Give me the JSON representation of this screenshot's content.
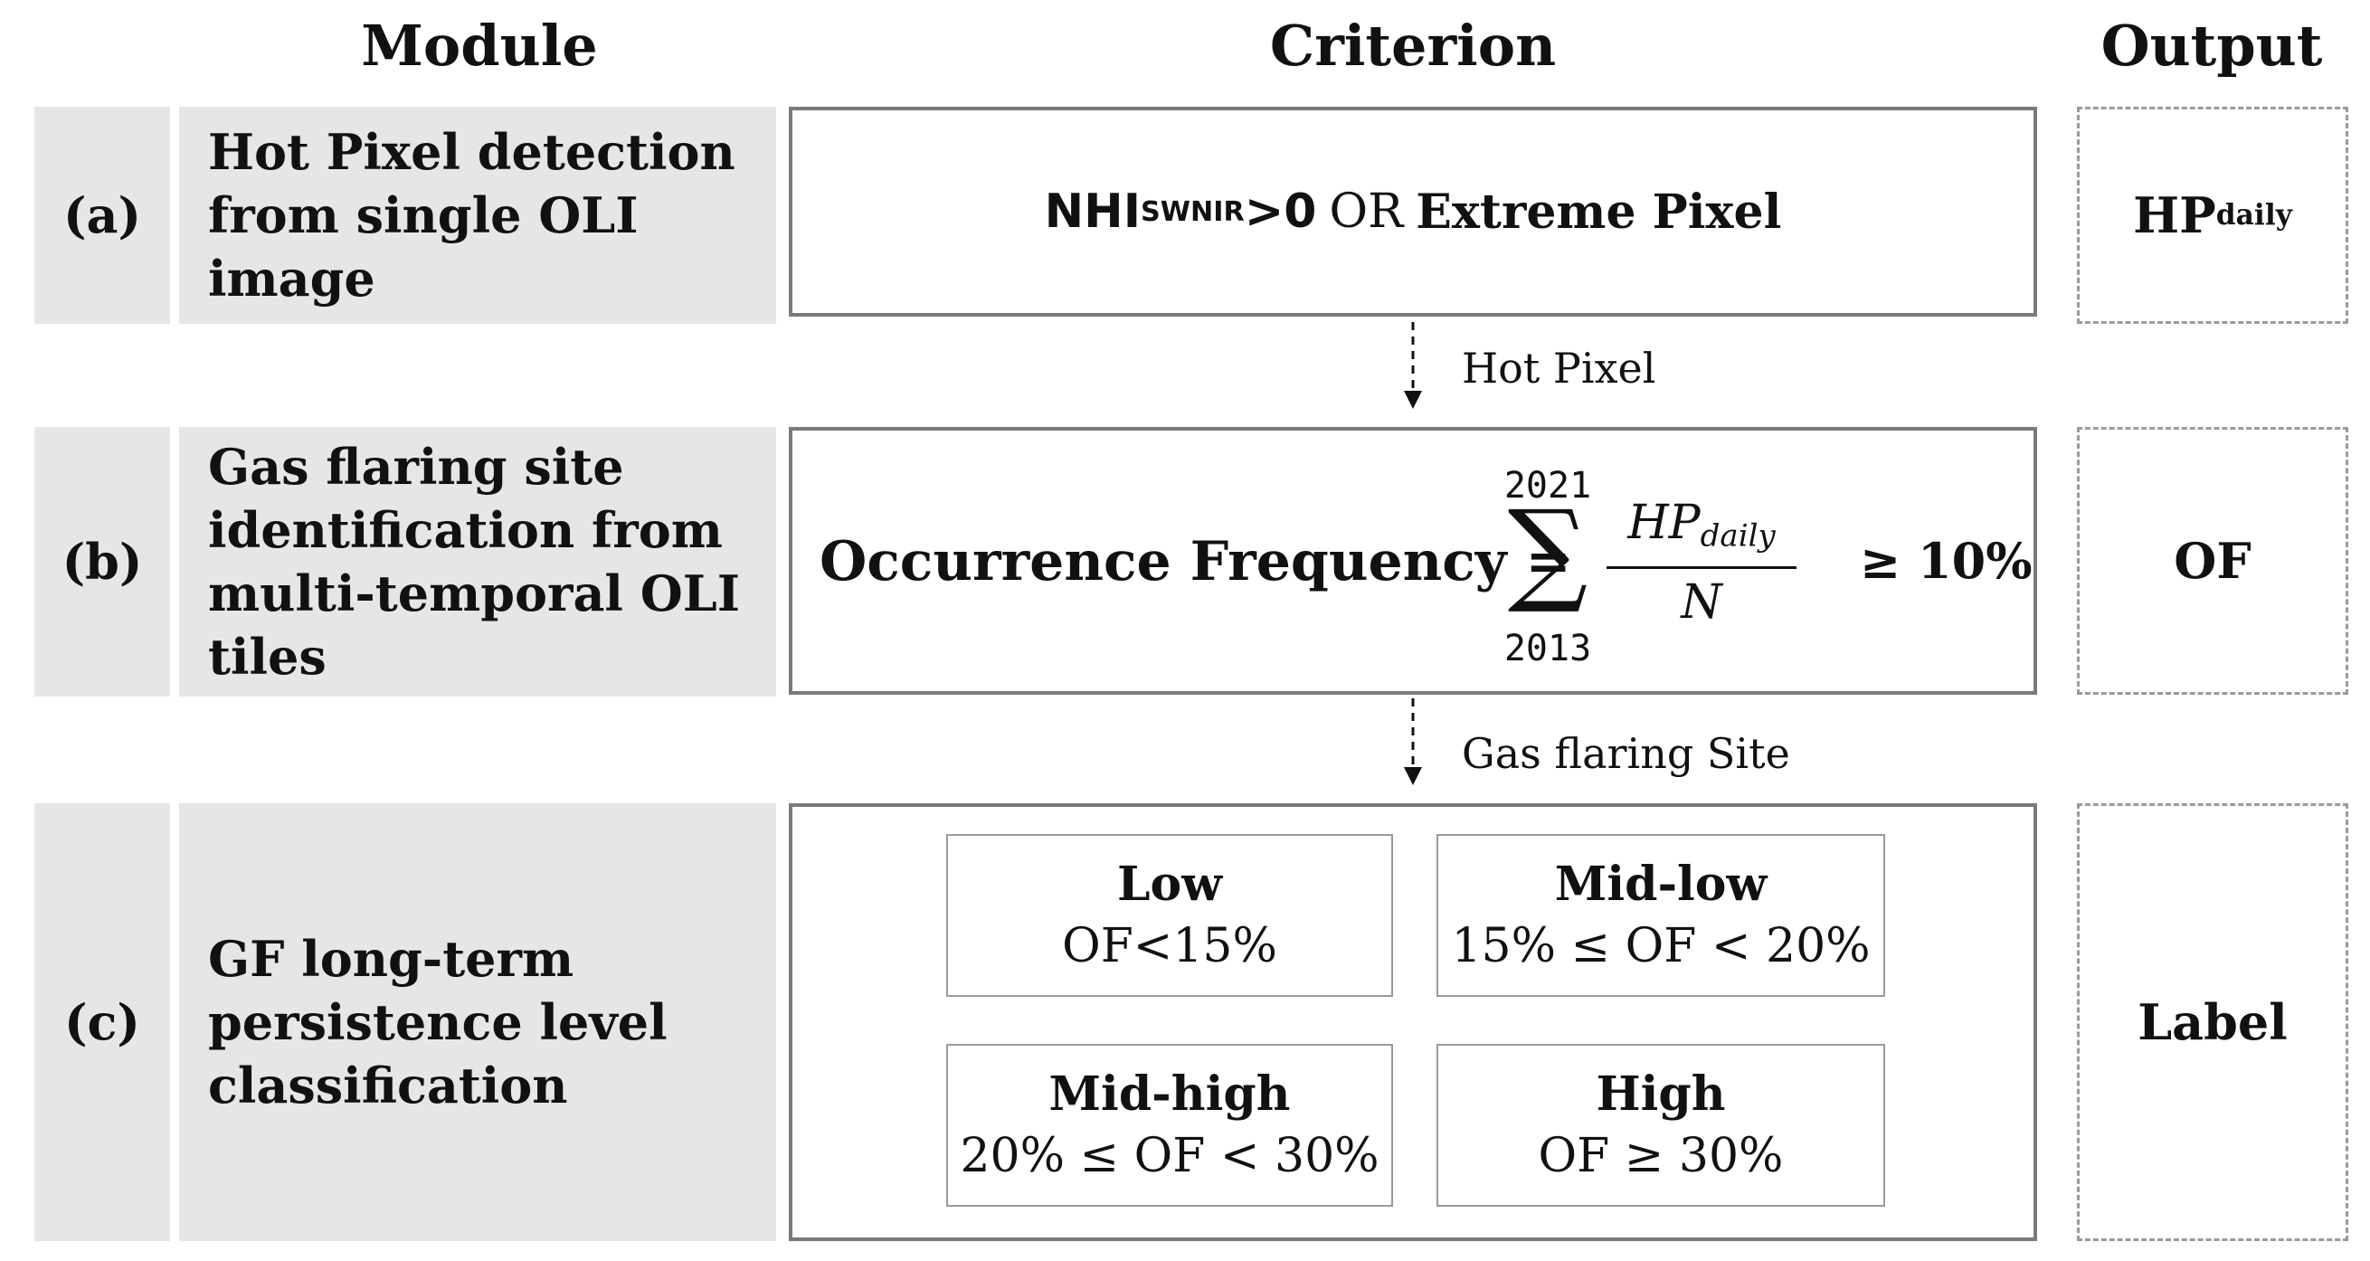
{
  "headers": {
    "module": "Module",
    "criterion": "Criterion",
    "output": "Output"
  },
  "rows": [
    {
      "label": "(a)",
      "module_text": "Hot Pixel detection\nfrom single OLI\nimage",
      "criterion": {
        "var": "NHI",
        "sub": "SWNIR",
        "cmp": ">0",
        "op": "OR",
        "rest": "Extreme Pixel"
      },
      "output": {
        "main": "HP",
        "sub": "daily"
      }
    },
    {
      "label": "(b)",
      "module_text": "Gas flaring site\nidentification from\nmulti-temporal OLI\ntiles",
      "criterion": {
        "lhs": "Occurrence Frequency =",
        "sum_upper": "2021",
        "sum_lower": "2013",
        "numerator": "HP",
        "numerator_sub": "daily",
        "denominator": "N",
        "threshold": "≥ 10%"
      },
      "output": {
        "main": "OF"
      }
    },
    {
      "label": "(c)",
      "module_text": "GF long-term\npersistence level\nclassification",
      "levels": [
        {
          "name": "Low",
          "rule": "OF<15%"
        },
        {
          "name": "Mid-low",
          "rule": "15% ≤  OF < 20%"
        },
        {
          "name": "Mid-high",
          "rule": "20% ≤  OF < 30%"
        },
        {
          "name": "High",
          "rule": "OF ≥ 30%"
        }
      ],
      "output": {
        "main": "Label"
      }
    }
  ],
  "flows": [
    "Hot Pixel",
    "Gas flaring Site"
  ],
  "colors": {
    "module_fill": "#e6e6e6",
    "box_border": "#7a7a7a",
    "dashed_border": "#9a9a9a"
  }
}
